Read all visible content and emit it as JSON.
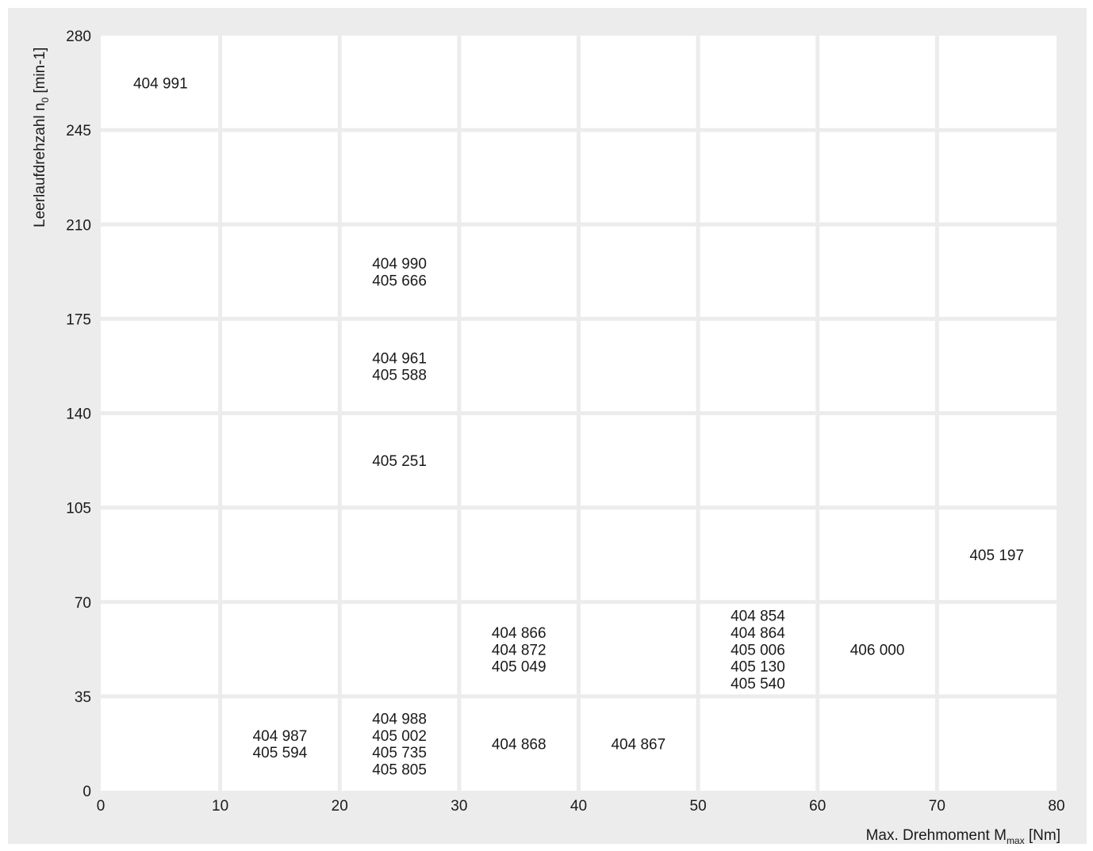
{
  "chart_data": {
    "type": "table",
    "x_axis": {
      "label_main": "Max. Drehmoment M",
      "label_sub": "max",
      "label_unit": " [Nm]",
      "min": 0,
      "max": 80,
      "ticks": [
        0,
        10,
        20,
        30,
        40,
        50,
        60,
        70,
        80
      ]
    },
    "y_axis": {
      "label_main": "Leerlaufdrehzahl n",
      "label_sub": "0",
      "label_unit": " [min-1]",
      "min": 0,
      "max": 280,
      "ticks": [
        0,
        35,
        70,
        105,
        140,
        175,
        210,
        245,
        280
      ]
    },
    "grid": true,
    "cells": [
      {
        "x_range": [
          0,
          10
        ],
        "y_range": [
          245,
          280
        ],
        "items": [
          "404 991"
        ]
      },
      {
        "x_range": [
          20,
          30
        ],
        "y_range": [
          175,
          210
        ],
        "items": [
          "404 990",
          "405 666"
        ]
      },
      {
        "x_range": [
          20,
          30
        ],
        "y_range": [
          140,
          175
        ],
        "items": [
          "404 961",
          "405 588"
        ]
      },
      {
        "x_range": [
          20,
          30
        ],
        "y_range": [
          105,
          140
        ],
        "items": [
          "405 251"
        ]
      },
      {
        "x_range": [
          70,
          80
        ],
        "y_range": [
          70,
          105
        ],
        "items": [
          "405 197"
        ]
      },
      {
        "x_range": [
          30,
          40
        ],
        "y_range": [
          35,
          70
        ],
        "items": [
          "404 866",
          "404 872",
          "405 049"
        ]
      },
      {
        "x_range": [
          50,
          60
        ],
        "y_range": [
          35,
          70
        ],
        "items": [
          "404 854",
          "404 864",
          "405 006",
          "405 130",
          "405 540"
        ]
      },
      {
        "x_range": [
          60,
          70
        ],
        "y_range": [
          35,
          70
        ],
        "items": [
          "406 000"
        ]
      },
      {
        "x_range": [
          10,
          20
        ],
        "y_range": [
          0,
          35
        ],
        "items": [
          "404 987",
          "405 594"
        ]
      },
      {
        "x_range": [
          20,
          30
        ],
        "y_range": [
          0,
          35
        ],
        "items": [
          "404 988",
          "405 002",
          "405 735",
          "405 805"
        ]
      },
      {
        "x_range": [
          30,
          40
        ],
        "y_range": [
          0,
          35
        ],
        "items": [
          "404 868"
        ]
      },
      {
        "x_range": [
          40,
          50
        ],
        "y_range": [
          0,
          35
        ],
        "items": [
          "404 867"
        ]
      }
    ]
  }
}
